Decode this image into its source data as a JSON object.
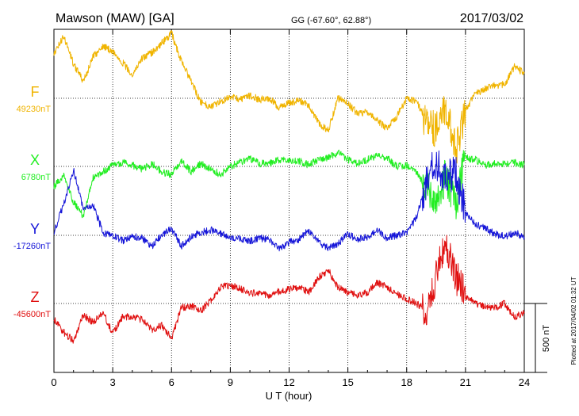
{
  "header": {
    "station": "Mawson (MAW)  [GA]",
    "coords": "GG (-67.60°,  62.88°)",
    "date": "2017/03/02"
  },
  "plotted_note": "Plotted at 2017/04/02 01:32 UT",
  "scale_label": "500 nT",
  "colors": {
    "F": "#f0b400",
    "X": "#22ee22",
    "Y": "#1515d8",
    "Z": "#e01010",
    "grid": "#000000"
  },
  "chart_data": {
    "type": "line",
    "title": "Mawson (MAW)  [GA]",
    "xlabel": "U T (hour)",
    "ylabel": "",
    "xlim": [
      0,
      24
    ],
    "x_ticks": [
      "0",
      "3",
      "6",
      "9",
      "12",
      "15",
      "18",
      "21",
      "24"
    ],
    "grid": true,
    "scale_nT": 500,
    "series": [
      {
        "name": "F",
        "baseline_label": "49230nT",
        "color": "#f0b400",
        "baseline_nT": 49230,
        "x": [
          0,
          0.5,
          1,
          1.5,
          2,
          2.5,
          3,
          3.5,
          4,
          4.5,
          5,
          5.5,
          6,
          6.5,
          7,
          7.5,
          8,
          8.5,
          9,
          9.5,
          10,
          10.5,
          11,
          11.5,
          12,
          12.5,
          13,
          13.5,
          14,
          14.5,
          15,
          15.5,
          16,
          16.5,
          17,
          17.5,
          18,
          18.5,
          19,
          19.5,
          20,
          20.5,
          21,
          21.5,
          22,
          22.5,
          23,
          23.5,
          24
        ],
        "y": [
          49550,
          49680,
          49480,
          49350,
          49530,
          49610,
          49570,
          49490,
          49400,
          49520,
          49560,
          49630,
          49700,
          49500,
          49350,
          49200,
          49170,
          49210,
          49240,
          49220,
          49250,
          49220,
          49230,
          49160,
          49200,
          49210,
          49180,
          49050,
          49000,
          49230,
          49190,
          49120,
          49130,
          49070,
          49010,
          49100,
          49230,
          49210,
          49050,
          49000,
          49150,
          48850,
          49150,
          49260,
          49300,
          49320,
          49330,
          49460,
          49410
        ]
      },
      {
        "name": "X",
        "baseline_label": "6780nT",
        "color": "#22ee22",
        "baseline_nT": 6780,
        "x": [
          0,
          0.5,
          1,
          1.5,
          2,
          2.5,
          3,
          3.5,
          4,
          4.5,
          5,
          5.5,
          6,
          6.5,
          7,
          7.5,
          8,
          8.5,
          9,
          9.5,
          10,
          10.5,
          11,
          11.5,
          12,
          12.5,
          13,
          13.5,
          14,
          14.5,
          15,
          15.5,
          16,
          16.5,
          17,
          17.5,
          18,
          18.5,
          19,
          19.5,
          20,
          20.5,
          21,
          21.5,
          22,
          22.5,
          23,
          23.5,
          24
        ],
        "y": [
          6630,
          6720,
          6520,
          6420,
          6700,
          6740,
          6790,
          6810,
          6790,
          6760,
          6800,
          6740,
          6720,
          6820,
          6740,
          6800,
          6760,
          6720,
          6780,
          6810,
          6840,
          6800,
          6800,
          6830,
          6820,
          6820,
          6790,
          6830,
          6840,
          6880,
          6830,
          6800,
          6830,
          6860,
          6840,
          6780,
          6790,
          6730,
          6640,
          6520,
          6720,
          6500,
          6840,
          6830,
          6790,
          6800,
          6800,
          6810,
          6790
        ]
      },
      {
        "name": "Y",
        "baseline_label": "-17260nT",
        "color": "#1515d8",
        "baseline_nT": -17260,
        "x": [
          0,
          0.5,
          1,
          1.5,
          2,
          2.5,
          3,
          3.5,
          4,
          4.5,
          5,
          5.5,
          6,
          6.5,
          7,
          7.5,
          8,
          8.5,
          9,
          9.5,
          10,
          10.5,
          11,
          11.5,
          12,
          12.5,
          13,
          13.5,
          14,
          14.5,
          15,
          15.5,
          16,
          16.5,
          17,
          17.5,
          18,
          18.5,
          19,
          19.5,
          20,
          20.5,
          21,
          21.5,
          22,
          22.5,
          23,
          23.5,
          24
        ],
        "y": [
          -17240,
          -17030,
          -16780,
          -17080,
          -17040,
          -17240,
          -17260,
          -17300,
          -17270,
          -17280,
          -17340,
          -17260,
          -17210,
          -17340,
          -17270,
          -17240,
          -17220,
          -17250,
          -17270,
          -17290,
          -17300,
          -17280,
          -17290,
          -17360,
          -17310,
          -17290,
          -17220,
          -17310,
          -17350,
          -17320,
          -17250,
          -17290,
          -17270,
          -17220,
          -17280,
          -17260,
          -17240,
          -17130,
          -16880,
          -16720,
          -16860,
          -16800,
          -17100,
          -17180,
          -17210,
          -17250,
          -17270,
          -17240,
          -17270
        ]
      },
      {
        "name": "Z",
        "baseline_label": "-45600nT",
        "color": "#e01010",
        "baseline_nT": -45600,
        "x": [
          0,
          0.5,
          1,
          1.5,
          2,
          2.5,
          3,
          3.5,
          4,
          4.5,
          5,
          5.5,
          6,
          6.5,
          7,
          7.5,
          8,
          8.5,
          9,
          9.5,
          10,
          10.5,
          11,
          11.5,
          12,
          12.5,
          13,
          13.5,
          14,
          14.5,
          15,
          15.5,
          16,
          16.5,
          17,
          17.5,
          18,
          18.5,
          19,
          19.5,
          20,
          20.5,
          21,
          21.5,
          22,
          22.5,
          23,
          23.5,
          24
        ],
        "y": [
          -45710,
          -45810,
          -45870,
          -45680,
          -45740,
          -45660,
          -45820,
          -45700,
          -45690,
          -45720,
          -45790,
          -45760,
          -45850,
          -45630,
          -45620,
          -45650,
          -45580,
          -45480,
          -45470,
          -45490,
          -45530,
          -45520,
          -45550,
          -45510,
          -45500,
          -45480,
          -45520,
          -45410,
          -45360,
          -45480,
          -45520,
          -45540,
          -45520,
          -45450,
          -45480,
          -45530,
          -45570,
          -45600,
          -45650,
          -45400,
          -45170,
          -45400,
          -45550,
          -45600,
          -45620,
          -45630,
          -45600,
          -45700,
          -45660
        ]
      }
    ]
  }
}
